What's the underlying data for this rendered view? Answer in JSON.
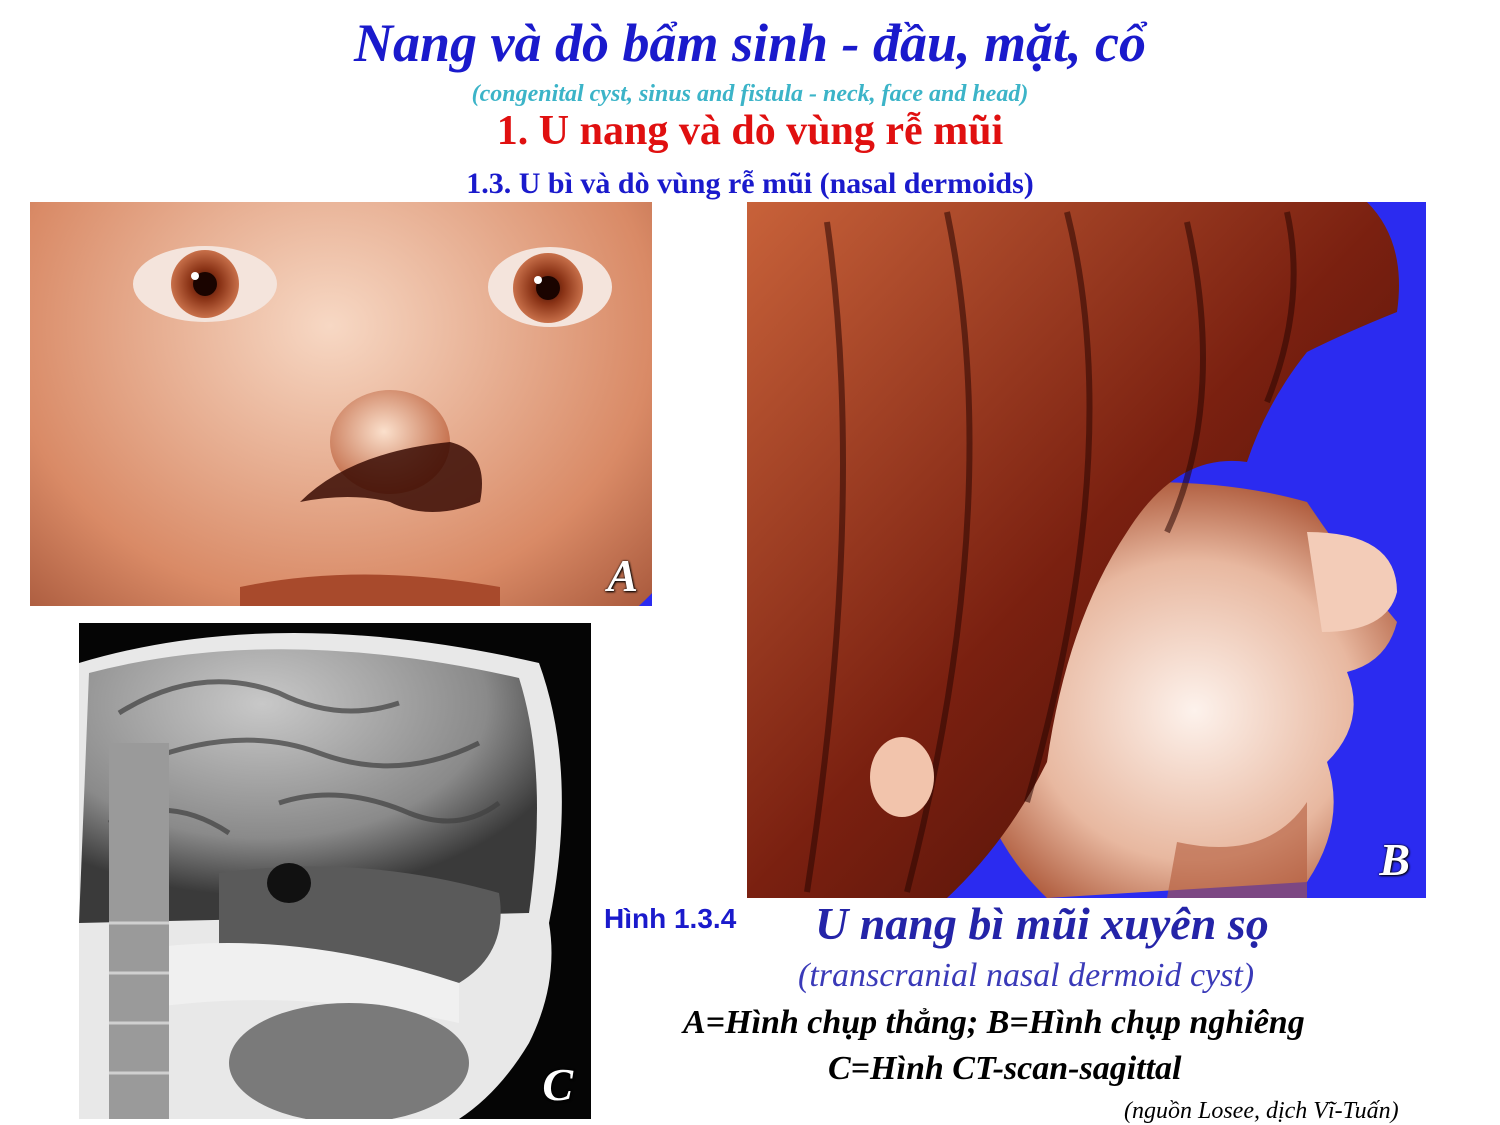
{
  "header": {
    "title": "Nang và dò bẩm sinh - đầu, mặt, cổ",
    "subtitle": "(congenital cyst, sinus and fistula - neck, face and head)",
    "section": "1. U nang và dò vùng rễ mũi",
    "subsection": "1.3. U bì và dò vùng rễ mũi (nasal dermoids)"
  },
  "photos": {
    "a_label": "A",
    "b_label": "B",
    "c_label": "C"
  },
  "caption": {
    "figure_number": "Hình 1.3.4",
    "title": "U nang bì mũi xuyên sọ",
    "english": "(transcranial nasal dermoid cyst)",
    "legend_ab": "A=Hình chụp thẳng;  B=Hình chụp nghiêng",
    "legend_c": "C=Hình CT-scan-sagittal",
    "source": "(nguồn Losee, dịch Vĩ-Tuấn)"
  },
  "colors": {
    "title_blue": "#1a1acc",
    "subtitle_cyan": "#3cb4c8",
    "section_red": "#e01010",
    "photo_background_blue": "#2b2bf0"
  }
}
